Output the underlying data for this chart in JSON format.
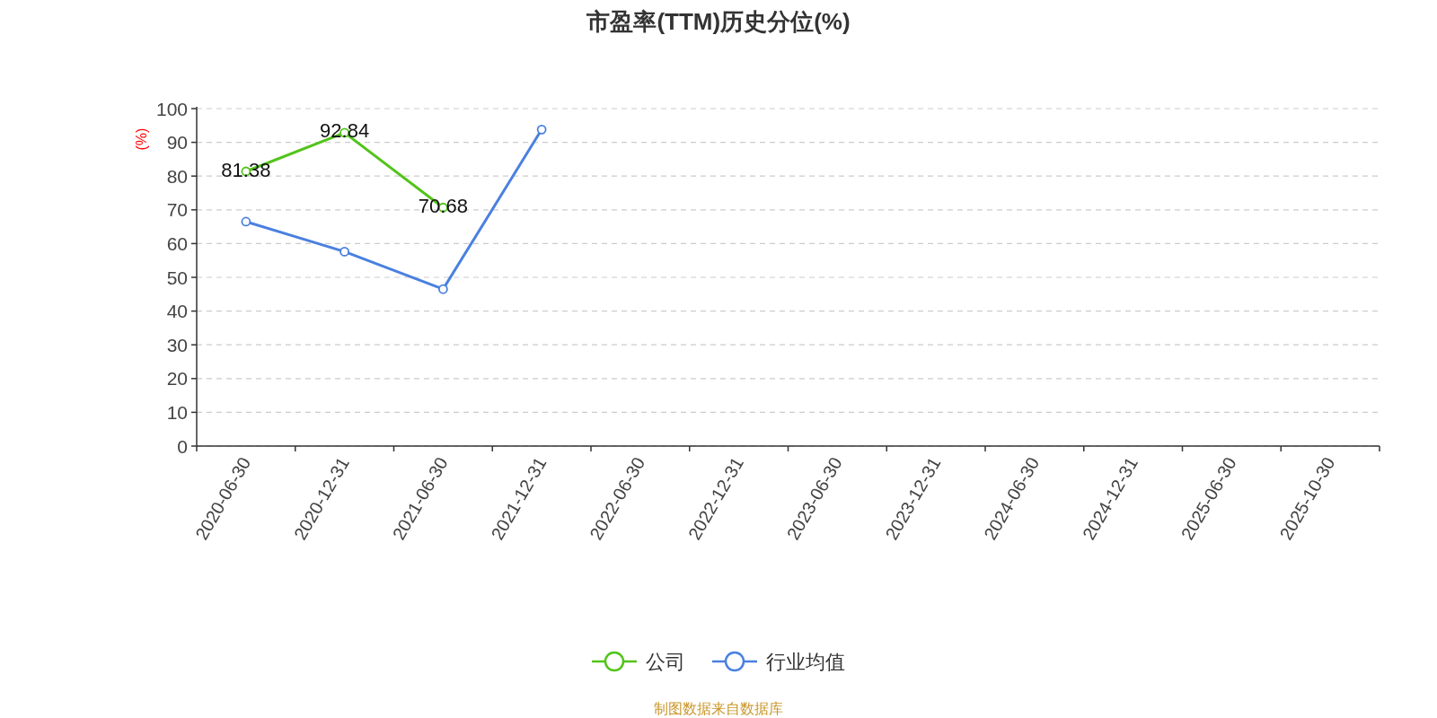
{
  "chart_data": {
    "type": "line",
    "title": "市盈率(TTM)历史分位(%)",
    "ylabel": "(%)",
    "categories": [
      "2020-06-30",
      "2020-12-31",
      "2021-06-30",
      "2021-12-31",
      "2022-06-30",
      "2022-12-31",
      "2023-06-30",
      "2023-12-31",
      "2024-06-30",
      "2024-12-31",
      "2025-06-30",
      "2025-10-30"
    ],
    "series": [
      {
        "name": "公司",
        "color": "#52c41a",
        "values": [
          81.38,
          92.84,
          70.68,
          null,
          null,
          null,
          null,
          null,
          null,
          null,
          null,
          null
        ],
        "value_labels": [
          "81.38",
          "92.84",
          "70.68",
          null,
          null,
          null,
          null,
          null,
          null,
          null,
          null,
          null
        ]
      },
      {
        "name": "行业均值",
        "color": "#4a80e0",
        "values": [
          66.5,
          57.6,
          46.5,
          93.8,
          null,
          null,
          null,
          null,
          null,
          null,
          null,
          null
        ]
      }
    ],
    "ylim": [
      0,
      100
    ],
    "yticks": [
      0,
      10,
      20,
      30,
      40,
      50,
      60,
      70,
      80,
      90,
      100
    ],
    "grid": "y",
    "legend": "bottom",
    "marker": "circle",
    "line_style": "solid",
    "annotations": [
      "制图数据来自数据库"
    ]
  }
}
